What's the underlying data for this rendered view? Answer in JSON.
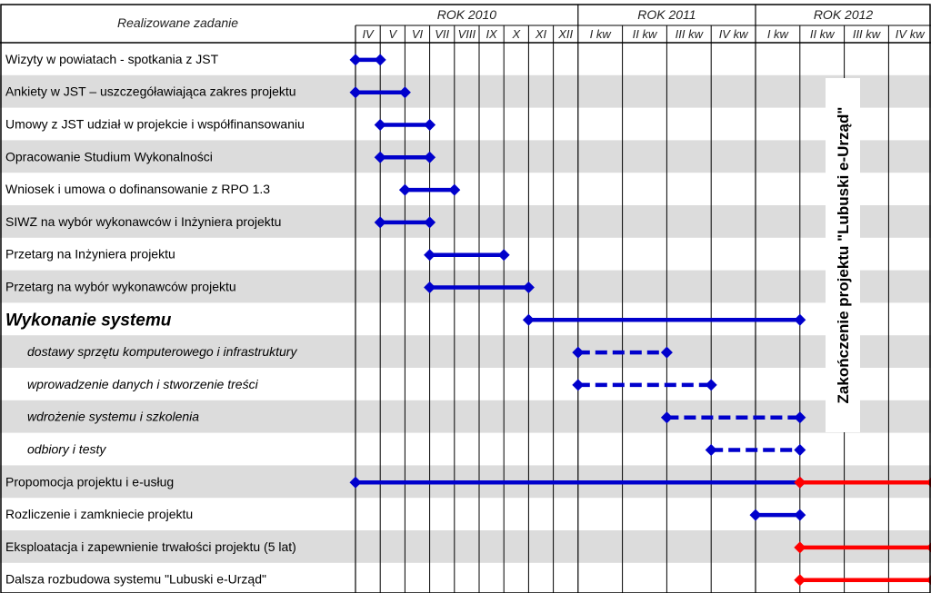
{
  "chart_data": {
    "type": "gantt",
    "header": {
      "task_column": "Realizowane zadanie",
      "years": [
        {
          "label": "ROK 2010",
          "periods": [
            "IV",
            "V",
            "VI",
            "VII",
            "VIII",
            "IX",
            "X",
            "XI",
            "XII"
          ]
        },
        {
          "label": "ROK 2011",
          "periods": [
            "I kw",
            "II kw",
            "III kw",
            "IV kw"
          ]
        },
        {
          "label": "ROK 2012",
          "periods": [
            "I kw",
            "II kw",
            "III kw",
            "IV kw"
          ]
        }
      ]
    },
    "vertical_note": "Zakończenie projektu \"Lubuski e-Urząd\"",
    "colors": {
      "plan": "#0000cc",
      "after": "#ff0000",
      "stripe": "#dcdcdc",
      "grid": "#000000"
    },
    "tasks": [
      {
        "label": "Wizyty w powiatach - spotkania z JST",
        "style": "normal",
        "bars": [
          {
            "from": "2010-04",
            "to": "2010-05",
            "kind": "solid",
            "color": "plan"
          }
        ]
      },
      {
        "label": "Ankiety w JST – uszczegóławiająca zakres projektu",
        "style": "normal",
        "bars": [
          {
            "from": "2010-04",
            "to": "2010-06",
            "kind": "solid",
            "color": "plan"
          }
        ]
      },
      {
        "label": "Umowy z JST udział w projekcie i współfinansowaniu",
        "style": "normal",
        "bars": [
          {
            "from": "2010-05",
            "to": "2010-07",
            "kind": "solid",
            "color": "plan"
          }
        ]
      },
      {
        "label": "Opracowanie Studium Wykonalności",
        "style": "normal",
        "bars": [
          {
            "from": "2010-05",
            "to": "2010-07",
            "kind": "solid",
            "color": "plan"
          }
        ]
      },
      {
        "label": "Wniosek i umowa o dofinansowanie z RPO 1.3",
        "style": "normal",
        "bars": [
          {
            "from": "2010-06",
            "to": "2010-08",
            "kind": "solid",
            "color": "plan"
          }
        ]
      },
      {
        "label": "SIWZ na wybór wykonawców i Inżyniera projektu",
        "style": "normal",
        "bars": [
          {
            "from": "2010-05",
            "to": "2010-07",
            "kind": "solid",
            "color": "plan"
          }
        ]
      },
      {
        "label": "Przetarg na Inżyniera projektu",
        "style": "normal",
        "bars": [
          {
            "from": "2010-07",
            "to": "2010-10",
            "kind": "solid",
            "color": "plan"
          }
        ]
      },
      {
        "label": "Przetarg na wybór wykonawców projektu",
        "style": "normal",
        "bars": [
          {
            "from": "2010-07",
            "to": "2010-11",
            "kind": "solid",
            "color": "plan"
          }
        ]
      },
      {
        "label": "Wykonanie systemu",
        "style": "heading",
        "bars": [
          {
            "from": "2010-11",
            "to": "2012-Q2",
            "kind": "solid",
            "color": "plan"
          }
        ]
      },
      {
        "label": "dostawy sprzętu komputerowego i infrastruktury",
        "style": "sub",
        "bars": [
          {
            "from": "2011-Q1",
            "to": "2011-Q3",
            "kind": "dashed",
            "color": "plan"
          }
        ]
      },
      {
        "label": "wprowadzenie danych i stworzenie treści",
        "style": "sub",
        "bars": [
          {
            "from": "2011-Q1",
            "to": "2011-Q4",
            "kind": "dashed",
            "color": "plan"
          }
        ]
      },
      {
        "label": "wdrożenie systemu i szkolenia",
        "style": "sub",
        "bars": [
          {
            "from": "2011-Q3",
            "to": "2012-Q2",
            "kind": "dashed",
            "color": "plan"
          }
        ]
      },
      {
        "label": "odbiory i testy",
        "style": "sub",
        "bars": [
          {
            "from": "2011-Q4",
            "to": "2012-Q2",
            "kind": "dashed",
            "color": "plan"
          }
        ]
      },
      {
        "label": "Propomocja projektu i e-usług",
        "style": "normal",
        "bars": [
          {
            "from": "2010-04",
            "to": "2012-Q2",
            "kind": "solid",
            "color": "plan"
          },
          {
            "from": "2012-Q2",
            "to": "2012-Q4",
            "kind": "solid",
            "color": "after"
          }
        ]
      },
      {
        "label": "Rozliczenie i zamkniecie projektu",
        "style": "normal",
        "bars": [
          {
            "from": "2012-Q1",
            "to": "2012-Q2",
            "kind": "solid",
            "color": "plan"
          }
        ]
      },
      {
        "label": "Eksploatacja i zapewnienie trwałości projektu (5 lat)",
        "style": "normal",
        "bars": [
          {
            "from": "2012-Q2",
            "to": "2012-Q4",
            "kind": "solid",
            "color": "after"
          }
        ]
      },
      {
        "label": "Dalsza rozbudowa systemu \"Lubuski e-Urząd\"",
        "style": "normal",
        "bars": [
          {
            "from": "2012-Q2",
            "to": "2012-Q4",
            "kind": "solid",
            "color": "after"
          }
        ]
      }
    ]
  }
}
